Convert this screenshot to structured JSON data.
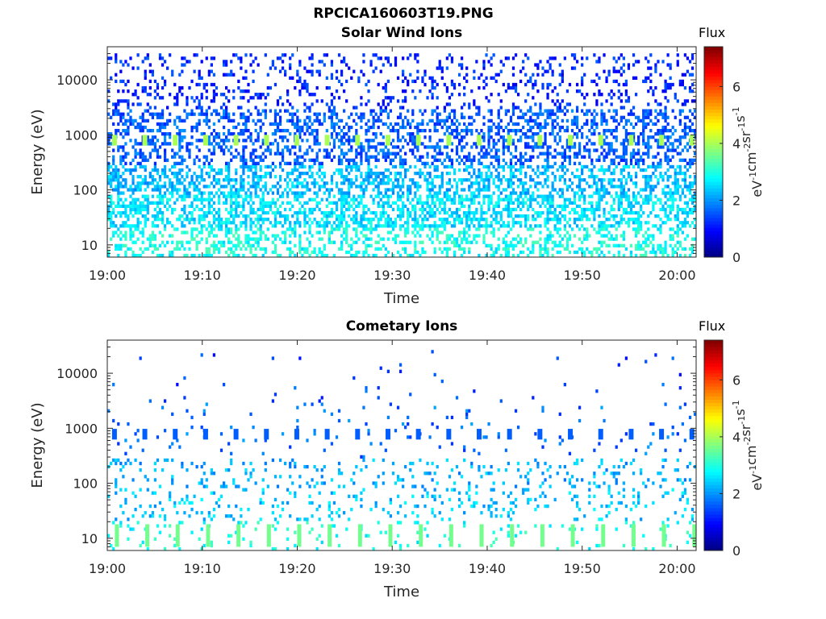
{
  "figure": {
    "title": "RPCICA160603T19.PNG"
  },
  "colorbar": {
    "label": "Flux",
    "unit_base": "eV",
    "unit_parts": [
      {
        "text": "eV",
        "sup": "-1"
      },
      {
        "text": "cm",
        "sup": "-2"
      },
      {
        "text": "sr",
        "sup": "-1"
      },
      {
        "text": "s",
        "sup": "-1"
      }
    ],
    "ticks": [
      "0",
      "2",
      "4",
      "6"
    ],
    "range": [
      0,
      7.4
    ],
    "colormap": "jet"
  },
  "chart_data": [
    {
      "type": "heatmap",
      "title": "Solar Wind Ions",
      "xlabel": "Time",
      "ylabel": "Energy (eV)",
      "x_ticks": [
        "19:00",
        "19:10",
        "19:20",
        "19:30",
        "19:40",
        "19:50",
        "20:00"
      ],
      "x_range_minutes": [
        0,
        62
      ],
      "y_scale": "log",
      "y_ticks": [
        "10",
        "100",
        "1000",
        "10000"
      ],
      "y_range": [
        6,
        40000
      ],
      "pulse_period_min": 3.2,
      "pulse_energy_ev": 800,
      "pulse_flux": 4.0,
      "background": [
        {
          "e_min": 6,
          "e_max": 20,
          "flux": 2.9,
          "density": 0.35
        },
        {
          "e_min": 20,
          "e_max": 80,
          "flux": 2.6,
          "density": 0.5
        },
        {
          "e_min": 80,
          "e_max": 300,
          "flux": 2.3,
          "density": 0.45
        },
        {
          "e_min": 300,
          "e_max": 3000,
          "flux": 1.6,
          "density": 0.4
        },
        {
          "e_min": 3000,
          "e_max": 30000,
          "flux": 1.2,
          "density": 0.18
        }
      ]
    },
    {
      "type": "heatmap",
      "title": "Cometary Ions",
      "xlabel": "Time",
      "ylabel": "Energy (eV)",
      "x_ticks": [
        "19:00",
        "19:10",
        "19:20",
        "19:30",
        "19:40",
        "19:50",
        "20:00"
      ],
      "x_range_minutes": [
        0,
        62
      ],
      "y_scale": "log",
      "y_ticks": [
        "10",
        "100",
        "1000",
        "10000"
      ],
      "y_range": [
        6,
        40000
      ],
      "pulse_period_min": 3.2,
      "pulse_energy_ev": 780,
      "pulse_flux": 1.6,
      "low_pulse_energy_ev": [
        7,
        18
      ],
      "low_pulse_flux": 3.6,
      "background": [
        {
          "e_min": 6,
          "e_max": 20,
          "flux": 2.9,
          "density": 0.06
        },
        {
          "e_min": 20,
          "e_max": 80,
          "flux": 2.4,
          "density": 0.12
        },
        {
          "e_min": 80,
          "e_max": 300,
          "flux": 2.2,
          "density": 0.12
        },
        {
          "e_min": 300,
          "e_max": 3000,
          "flux": 1.7,
          "density": 0.03
        },
        {
          "e_min": 3000,
          "e_max": 30000,
          "flux": 1.4,
          "density": 0.012
        }
      ]
    }
  ]
}
